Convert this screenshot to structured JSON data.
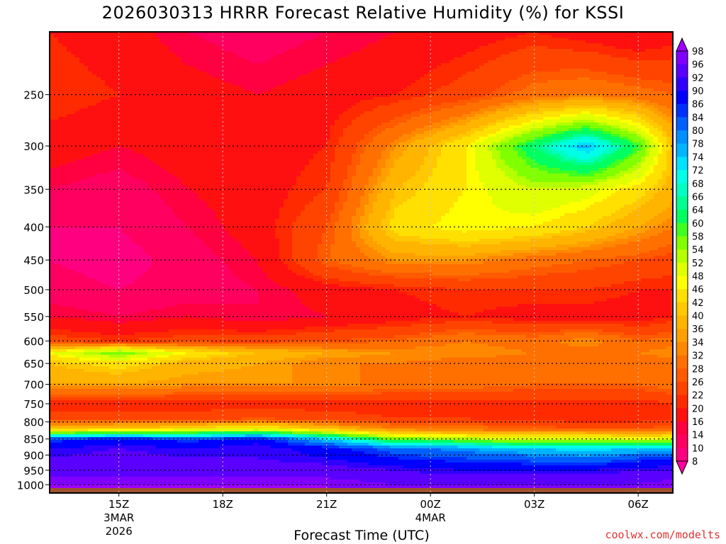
{
  "title": "2026030313 HRRR Forecast Relative Humidity (%) for KSSI",
  "watermark": "coolwx.com/modelts",
  "chart_data": {
    "type": "heatmap",
    "title": "2026030313 HRRR Forecast Relative Humidity (%) for KSSI",
    "xlabel": "Forecast Time (UTC)",
    "ylabel": "",
    "y_scale": "log-pressure",
    "y_ticks": [
      250,
      300,
      350,
      400,
      450,
      500,
      550,
      600,
      650,
      700,
      750,
      800,
      850,
      900,
      950,
      1000
    ],
    "x_ticks": [
      {
        "hour": 15,
        "label": "15Z",
        "sub": [
          "3MAR",
          "2026"
        ]
      },
      {
        "hour": 18,
        "label": "18Z",
        "sub": []
      },
      {
        "hour": 21,
        "label": "21Z",
        "sub": []
      },
      {
        "hour": 24,
        "label": "00Z",
        "sub": [
          "4MAR"
        ]
      },
      {
        "hour": 27,
        "label": "03Z",
        "sub": []
      },
      {
        "hour": 30,
        "label": "06Z",
        "sub": []
      }
    ],
    "x_range_hours": [
      13,
      31
    ],
    "y_range_hpa": [
      200,
      1030
    ],
    "grid": true,
    "colorbar": {
      "levels": [
        8,
        10,
        14,
        16,
        20,
        22,
        26,
        28,
        32,
        34,
        36,
        40,
        42,
        46,
        48,
        52,
        54,
        58,
        60,
        64,
        66,
        68,
        72,
        74,
        78,
        80,
        84,
        86,
        90,
        92,
        96,
        98
      ],
      "colors": [
        "#ff00a0",
        "#ff0080",
        "#ff0060",
        "#ff0040",
        "#ff1010",
        "#ff2a00",
        "#ff4400",
        "#ff5a00",
        "#ff7000",
        "#ff8800",
        "#ffa000",
        "#ffb400",
        "#ffc800",
        "#ffe000",
        "#ffff00",
        "#e0ff00",
        "#b4ff00",
        "#80ff00",
        "#40ff20",
        "#00ff60",
        "#00ff90",
        "#00ffc0",
        "#00ffe6",
        "#00e0ff",
        "#00b4ff",
        "#0090ff",
        "#0060ff",
        "#0030ff",
        "#0000ff",
        "#3000ff",
        "#5a00ff",
        "#8000ff",
        "#a000ff"
      ]
    },
    "ground_color": "#a0522d",
    "field_hours": [
      13,
      15,
      17,
      19,
      21,
      23,
      25,
      27,
      28.5,
      30,
      31
    ],
    "field_pressures": [
      200,
      250,
      300,
      350,
      400,
      450,
      500,
      550,
      600,
      625,
      650,
      700,
      750,
      790,
      820,
      850,
      880,
      910,
      950,
      1000,
      1030
    ],
    "field_rh": [
      [
        20,
        18,
        14,
        12,
        14,
        16,
        18,
        20,
        18,
        16,
        18
      ],
      [
        22,
        20,
        18,
        16,
        18,
        20,
        24,
        30,
        32,
        30,
        28
      ],
      [
        18,
        16,
        18,
        18,
        20,
        34,
        46,
        64,
        76,
        60,
        40
      ],
      [
        14,
        12,
        16,
        18,
        22,
        40,
        46,
        52,
        50,
        44,
        38
      ],
      [
        10,
        10,
        14,
        18,
        26,
        44,
        48,
        46,
        42,
        36,
        32
      ],
      [
        10,
        8,
        12,
        16,
        28,
        34,
        34,
        30,
        28,
        26,
        24
      ],
      [
        12,
        10,
        12,
        14,
        18,
        20,
        22,
        22,
        22,
        20,
        20
      ],
      [
        16,
        14,
        16,
        14,
        16,
        18,
        20,
        18,
        18,
        18,
        20
      ],
      [
        24,
        22,
        24,
        24,
        26,
        28,
        32,
        30,
        34,
        28,
        30
      ],
      [
        48,
        58,
        46,
        40,
        36,
        34,
        34,
        32,
        30,
        32,
        34
      ],
      [
        40,
        44,
        38,
        36,
        32,
        32,
        30,
        30,
        30,
        30,
        30
      ],
      [
        36,
        36,
        34,
        34,
        34,
        30,
        30,
        28,
        28,
        28,
        30
      ],
      [
        20,
        20,
        20,
        20,
        20,
        20,
        20,
        20,
        20,
        20,
        22
      ],
      [
        24,
        24,
        24,
        26,
        24,
        22,
        22,
        20,
        20,
        20,
        22
      ],
      [
        40,
        42,
        44,
        48,
        40,
        32,
        30,
        28,
        26,
        26,
        28
      ],
      [
        84,
        88,
        84,
        88,
        74,
        56,
        54,
        50,
        52,
        48,
        50
      ],
      [
        90,
        92,
        90,
        92,
        88,
        82,
        78,
        74,
        72,
        74,
        74
      ],
      [
        92,
        94,
        92,
        92,
        90,
        86,
        84,
        82,
        80,
        84,
        86
      ],
      [
        94,
        94,
        94,
        94,
        94,
        92,
        90,
        90,
        90,
        92,
        92
      ],
      [
        98,
        98,
        98,
        98,
        98,
        96,
        96,
        96,
        96,
        96,
        98
      ],
      [
        98,
        98,
        98,
        98,
        98,
        98,
        98,
        98,
        98,
        98,
        98
      ]
    ]
  }
}
